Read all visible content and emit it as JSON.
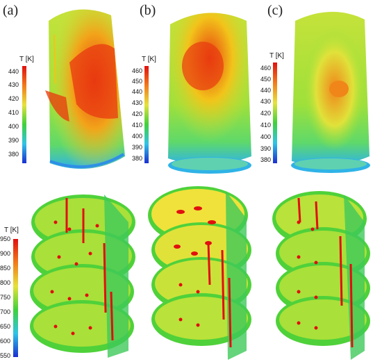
{
  "panel_labels": [
    "(a)",
    "(b)",
    "(c)"
  ],
  "colorbars": {
    "a": {
      "title": "T [K]",
      "ticks": [
        "440",
        "430",
        "420",
        "410",
        "400",
        "390",
        "380"
      ]
    },
    "b": {
      "title": "T [K]",
      "ticks": [
        "460",
        "450",
        "440",
        "430",
        "420",
        "410",
        "400",
        "390",
        "380"
      ]
    },
    "c": {
      "title": "T [K]",
      "ticks": [
        "460",
        "450",
        "440",
        "430",
        "420",
        "410",
        "400",
        "390",
        "380"
      ]
    },
    "bottom": {
      "title": "T [K]",
      "ticks": [
        "950",
        "900",
        "850",
        "800",
        "750",
        "700",
        "650",
        "600",
        "550"
      ]
    }
  },
  "colors": {
    "hot": "#e83a10",
    "warm": "#f29a1a",
    "mid": "#d9e23a",
    "cool": "#5fd13a",
    "cold": "#2fb3e6",
    "coldest": "#1a3fd1",
    "rod": "#e10f0f"
  }
}
